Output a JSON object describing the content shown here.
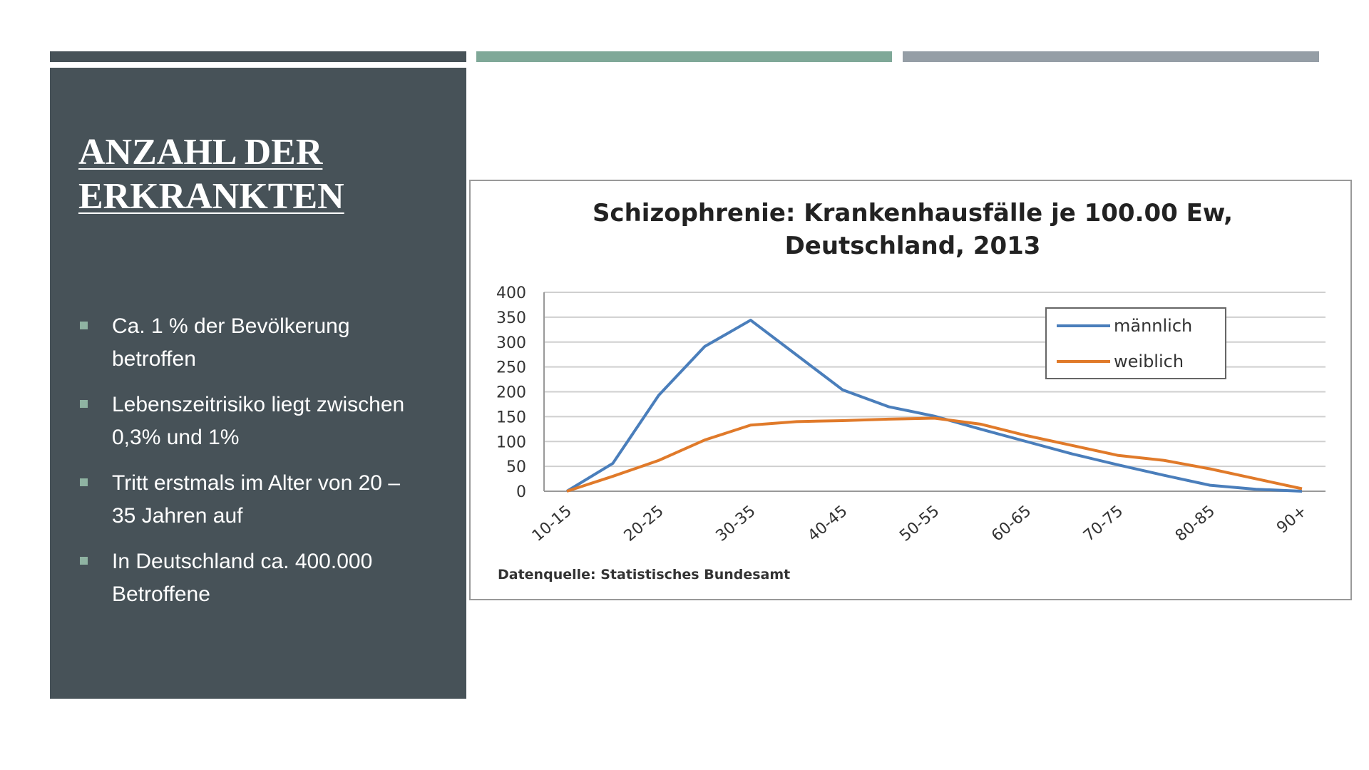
{
  "slide": {
    "title_lines": [
      "ANZAHL DER",
      "ERKRANKTEN"
    ],
    "bullets": [
      "Ca. 1 % der Bevölkerung betroffen",
      "Lebenszeitrisiko liegt zwischen 0,3% und 1%",
      "Tritt erstmals im Alter von 20 – 35 Jahren auf",
      "In Deutschland ca. 400.000 Betroffene"
    ]
  },
  "chart_data": {
    "type": "line",
    "title": "Schizophrenie: Krankenhausfälle je 100.00 Ew, Deutschland, 2013",
    "source": "Datenquelle: Statistisches Bundesamt",
    "categories": [
      "10-15",
      null,
      "20-25",
      null,
      "30-35",
      null,
      "40-45",
      null,
      "50-55",
      null,
      "60-65",
      null,
      "70-75",
      null,
      "80-85",
      null,
      "90+"
    ],
    "series": [
      {
        "name": "männlich",
        "color": "#4a7ebb",
        "values": [
          0,
          56,
          193,
          291,
          344,
          274,
          204,
          170,
          151,
          125,
          100,
          75,
          53,
          32,
          12,
          4,
          0
        ]
      },
      {
        "name": "weiblich",
        "color": "#e07a2a",
        "values": [
          0,
          30,
          62,
          103,
          133,
          140,
          142,
          145,
          147,
          135,
          112,
          92,
          72,
          62,
          45,
          25,
          5
        ]
      }
    ],
    "ylim": [
      0,
      400
    ],
    "yticks": [
      0,
      50,
      100,
      150,
      200,
      250,
      300,
      350,
      400
    ],
    "grid": true,
    "legend": "upper right"
  }
}
